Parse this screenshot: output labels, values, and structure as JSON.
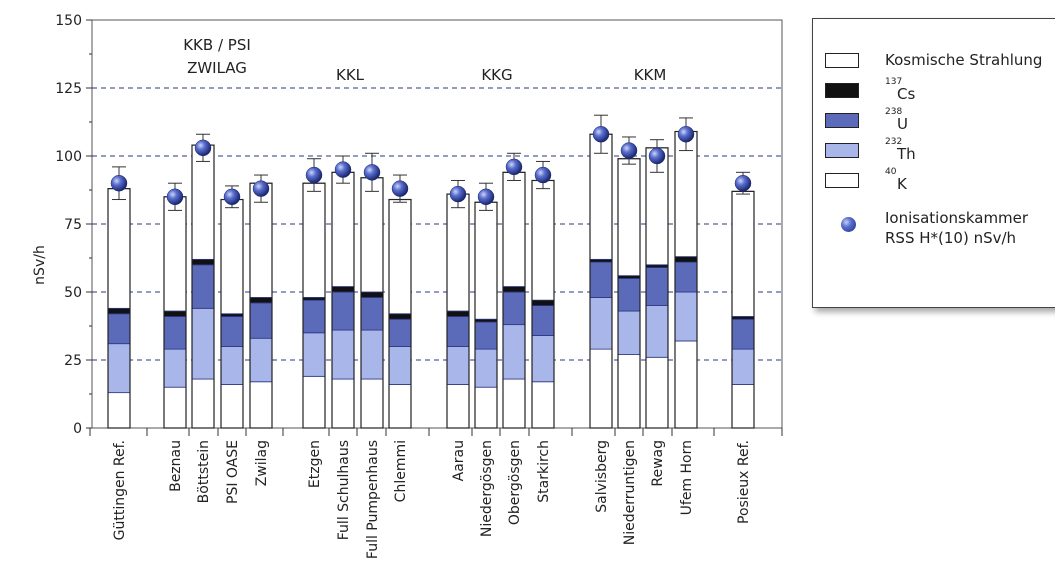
{
  "chart_data": {
    "type": "bar",
    "stacked": true,
    "ylabel": "nSv/h",
    "ylim": [
      0,
      150
    ],
    "yticks": [
      0,
      25,
      50,
      75,
      100,
      125,
      150
    ],
    "dashed_gridlines": [
      25,
      50,
      75,
      100,
      125
    ],
    "categories": [
      "Güttingen Ref.",
      "Beznau",
      "Böttstein",
      "PSI OASE",
      "Zwilag",
      "Etzgen",
      "Full Schulhaus",
      "Full Pumpenhaus",
      "Chlemmi",
      "Aarau",
      "Niedergösgen",
      "Obergösgen",
      "Starkirch",
      "Salvisberg",
      "Niederruntigen",
      "Rewag",
      "Ufem Horn",
      "Posieux Ref."
    ],
    "groups": [
      {
        "label": [
          "KKB / PSI",
          "ZWILAG"
        ],
        "members": [
          "Beznau",
          "Böttstein",
          "PSI OASE",
          "Zwilag"
        ]
      },
      {
        "label": [
          "KKL"
        ],
        "members": [
          "Etzgen",
          "Full Schulhaus",
          "Full Pumpenhaus",
          "Chlemmi"
        ]
      },
      {
        "label": [
          "KKG"
        ],
        "members": [
          "Aarau",
          "Niedergösgen",
          "Obergösgen",
          "Starkirch"
        ]
      },
      {
        "label": [
          "KKM"
        ],
        "members": [
          "Salvisberg",
          "Niederruntigen",
          "Rewag",
          "Ufem Horn"
        ]
      }
    ],
    "series": [
      {
        "key": "k40",
        "values": [
          13,
          15,
          18,
          16,
          17,
          19,
          18,
          18,
          16,
          16,
          15,
          18,
          17,
          29,
          27,
          26,
          32,
          16
        ],
        "color": "#ffffff"
      },
      {
        "key": "th232",
        "values": [
          18,
          14,
          26,
          14,
          16,
          16,
          18,
          18,
          14,
          14,
          14,
          20,
          17,
          19,
          16,
          19,
          18,
          13
        ],
        "color": "#a9b6ea"
      },
      {
        "key": "u238",
        "values": [
          11,
          12,
          16,
          11,
          13,
          12,
          14,
          12,
          10,
          11,
          10,
          12,
          11,
          13,
          12,
          14,
          11,
          11
        ],
        "color": "#5b6bba"
      },
      {
        "key": "cs137",
        "values": [
          2,
          2,
          2,
          1,
          2,
          1,
          2,
          2,
          2,
          2,
          1,
          2,
          2,
          1,
          1,
          1,
          2,
          1
        ],
        "color": "#111111"
      },
      {
        "key": "cosmic",
        "values": [
          44,
          42,
          42,
          42,
          42,
          42,
          42,
          42,
          42,
          43,
          43,
          42,
          44,
          46,
          43,
          43,
          46,
          46
        ],
        "color": "#ffffff"
      }
    ],
    "ionisation_chamber": {
      "values": [
        90,
        85,
        103,
        85,
        88,
        93,
        95,
        94,
        88,
        86,
        85,
        96,
        93,
        108,
        102,
        100,
        108,
        90
      ],
      "errors": [
        6,
        5,
        5,
        4,
        5,
        6,
        5,
        7,
        5,
        5,
        5,
        5,
        5,
        7,
        5,
        6,
        6,
        4
      ]
    },
    "bar_outline_color": "#2a3580",
    "grid_color": "#2a3580"
  },
  "legend": {
    "cosmic": "Kosmische Strahlung",
    "cs137": {
      "mass": "137",
      "symbol": "Cs"
    },
    "u238": {
      "mass": "238",
      "symbol": "U"
    },
    "th232": {
      "mass": "232",
      "symbol": "Th"
    },
    "k40": {
      "mass": "40",
      "symbol": "K"
    },
    "ion_line1": "Ionisationskammer",
    "ion_line2": "RSS H*(10) nSv/h"
  }
}
